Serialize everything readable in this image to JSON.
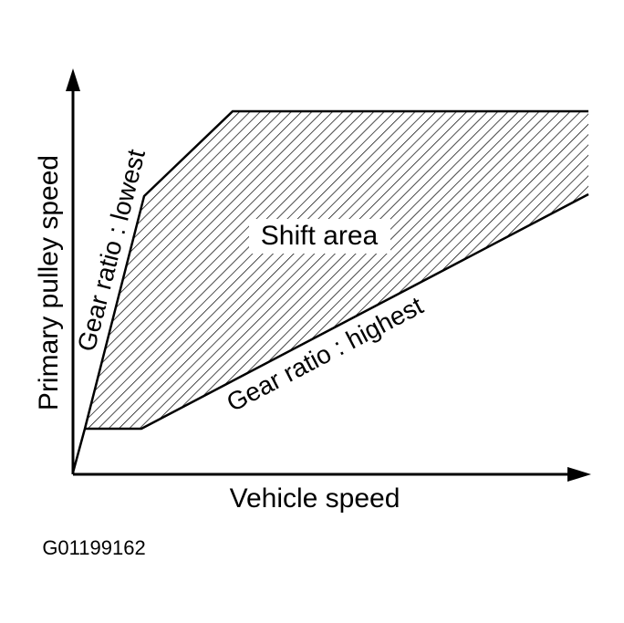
{
  "diagram": {
    "y_axis_label": "Primary pulley speed",
    "x_axis_label": "Vehicle speed",
    "region_label": "Shift area",
    "lowest_label": "Gear ratio : lowest",
    "highest_label": "Gear ratio : highest",
    "figure_id": "G01199162"
  }
}
